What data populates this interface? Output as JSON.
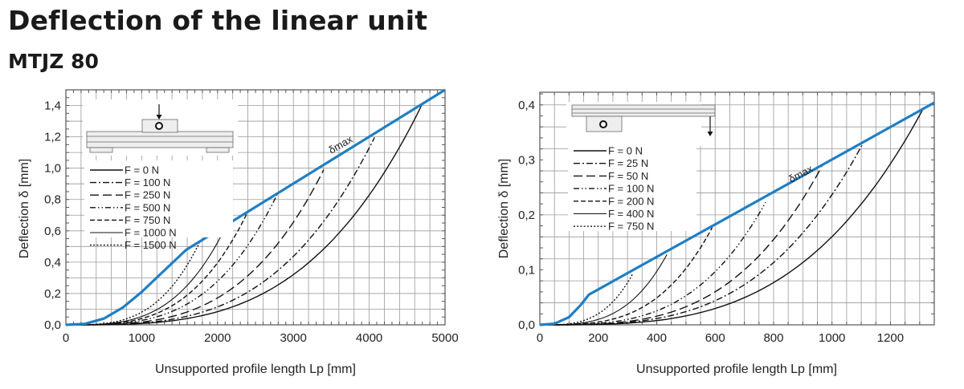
{
  "header": {
    "title": "Deflection of the linear unit",
    "subtitle": "MTJZ 80"
  },
  "chart_data": [
    {
      "type": "line",
      "xlabel": "Unsupported profile length Lp [mm]",
      "ylabel": "Deflection δ [mm]",
      "xlim": [
        0,
        5000
      ],
      "ylim": [
        0,
        1.5
      ],
      "xticks": [
        "0",
        "1000",
        "2000",
        "3000",
        "4000",
        "5000"
      ],
      "xtick_values": [
        0,
        1000,
        2000,
        3000,
        4000,
        5000
      ],
      "yticks": [
        "0,0",
        "0,2",
        "0,4",
        "0,6",
        "0,8",
        "1,0",
        "1,2",
        "1,4"
      ],
      "ytick_values": [
        0,
        0.2,
        0.4,
        0.6,
        0.8,
        1.0,
        1.2,
        1.4
      ],
      "grid": true,
      "legend_position": "top-left",
      "annotation": "δmax",
      "limit_color": "#1f7fc4",
      "limit_curve": {
        "name": "δmax",
        "x": [
          0,
          250,
          500,
          750,
          1000,
          1250,
          1585,
          5000
        ],
        "y": [
          0,
          0.006,
          0.04,
          0.11,
          0.21,
          0.325,
          0.478,
          1.5
        ]
      },
      "series": [
        {
          "name": "F = 0 N",
          "style": "solid",
          "x_end": 4690,
          "y_end": 1.4
        },
        {
          "name": "F = 100 N",
          "style": "dash-dot",
          "x_end": 4070,
          "y_end": 1.196
        },
        {
          "name": "F = 250 N",
          "style": "long-dash",
          "x_end": 3400,
          "y_end": 0.99
        },
        {
          "name": "F = 500 N",
          "style": "dash-dot-dot",
          "x_end": 2785,
          "y_end": 0.83
        },
        {
          "name": "F = 750 N",
          "style": "dash",
          "x_end": 2395,
          "y_end": 0.718
        },
        {
          "name": "F = 1000 N",
          "style": "solid-thin",
          "x_end": 2115,
          "y_end": 0.632
        },
        {
          "name": "F = 1500 N",
          "style": "dot",
          "x_end": 1760,
          "y_end": 0.523
        }
      ]
    },
    {
      "type": "line",
      "xlabel": "Unsupported profile length Lp [mm]",
      "ylabel": "Deflection δ [mm]",
      "xlim": [
        0,
        1350
      ],
      "ylim": [
        0,
        0.423
      ],
      "xticks": [
        "0",
        "200",
        "400",
        "600",
        "800",
        "1000",
        "1200"
      ],
      "xtick_values": [
        0,
        200,
        400,
        600,
        800,
        1000,
        1200
      ],
      "yticks": [
        "0,0",
        "0,1",
        "0,2",
        "0,3",
        "0,4"
      ],
      "ytick_values": [
        0,
        0.1,
        0.2,
        0.3,
        0.4
      ],
      "grid": true,
      "legend_position": "top-left",
      "annotation": "δmax",
      "limit_color": "#1f7fc4",
      "limit_curve": {
        "name": "δmax",
        "x": [
          0,
          50,
          100,
          140,
          168,
          1350
        ],
        "y": [
          0,
          0.002,
          0.014,
          0.036,
          0.055,
          0.404
        ]
      },
      "series": [
        {
          "name": "F = 0 N",
          "style": "solid",
          "x_end": 1310,
          "y_end": 0.391
        },
        {
          "name": "F = 25 N",
          "style": "dash-dot",
          "x_end": 1109,
          "y_end": 0.333
        },
        {
          "name": "F = 50 N",
          "style": "long-dash",
          "x_end": 966,
          "y_end": 0.289
        },
        {
          "name": "F = 100 N",
          "style": "dash-dot-dot",
          "x_end": 773,
          "y_end": 0.223
        },
        {
          "name": "F = 200 N",
          "style": "dash",
          "x_end": 590,
          "y_end": 0.177
        },
        {
          "name": "F = 400 N",
          "style": "solid-thin",
          "x_end": 435,
          "y_end": 0.128
        },
        {
          "name": "F = 750 N",
          "style": "dot",
          "x_end": 319,
          "y_end": 0.094
        }
      ]
    }
  ]
}
